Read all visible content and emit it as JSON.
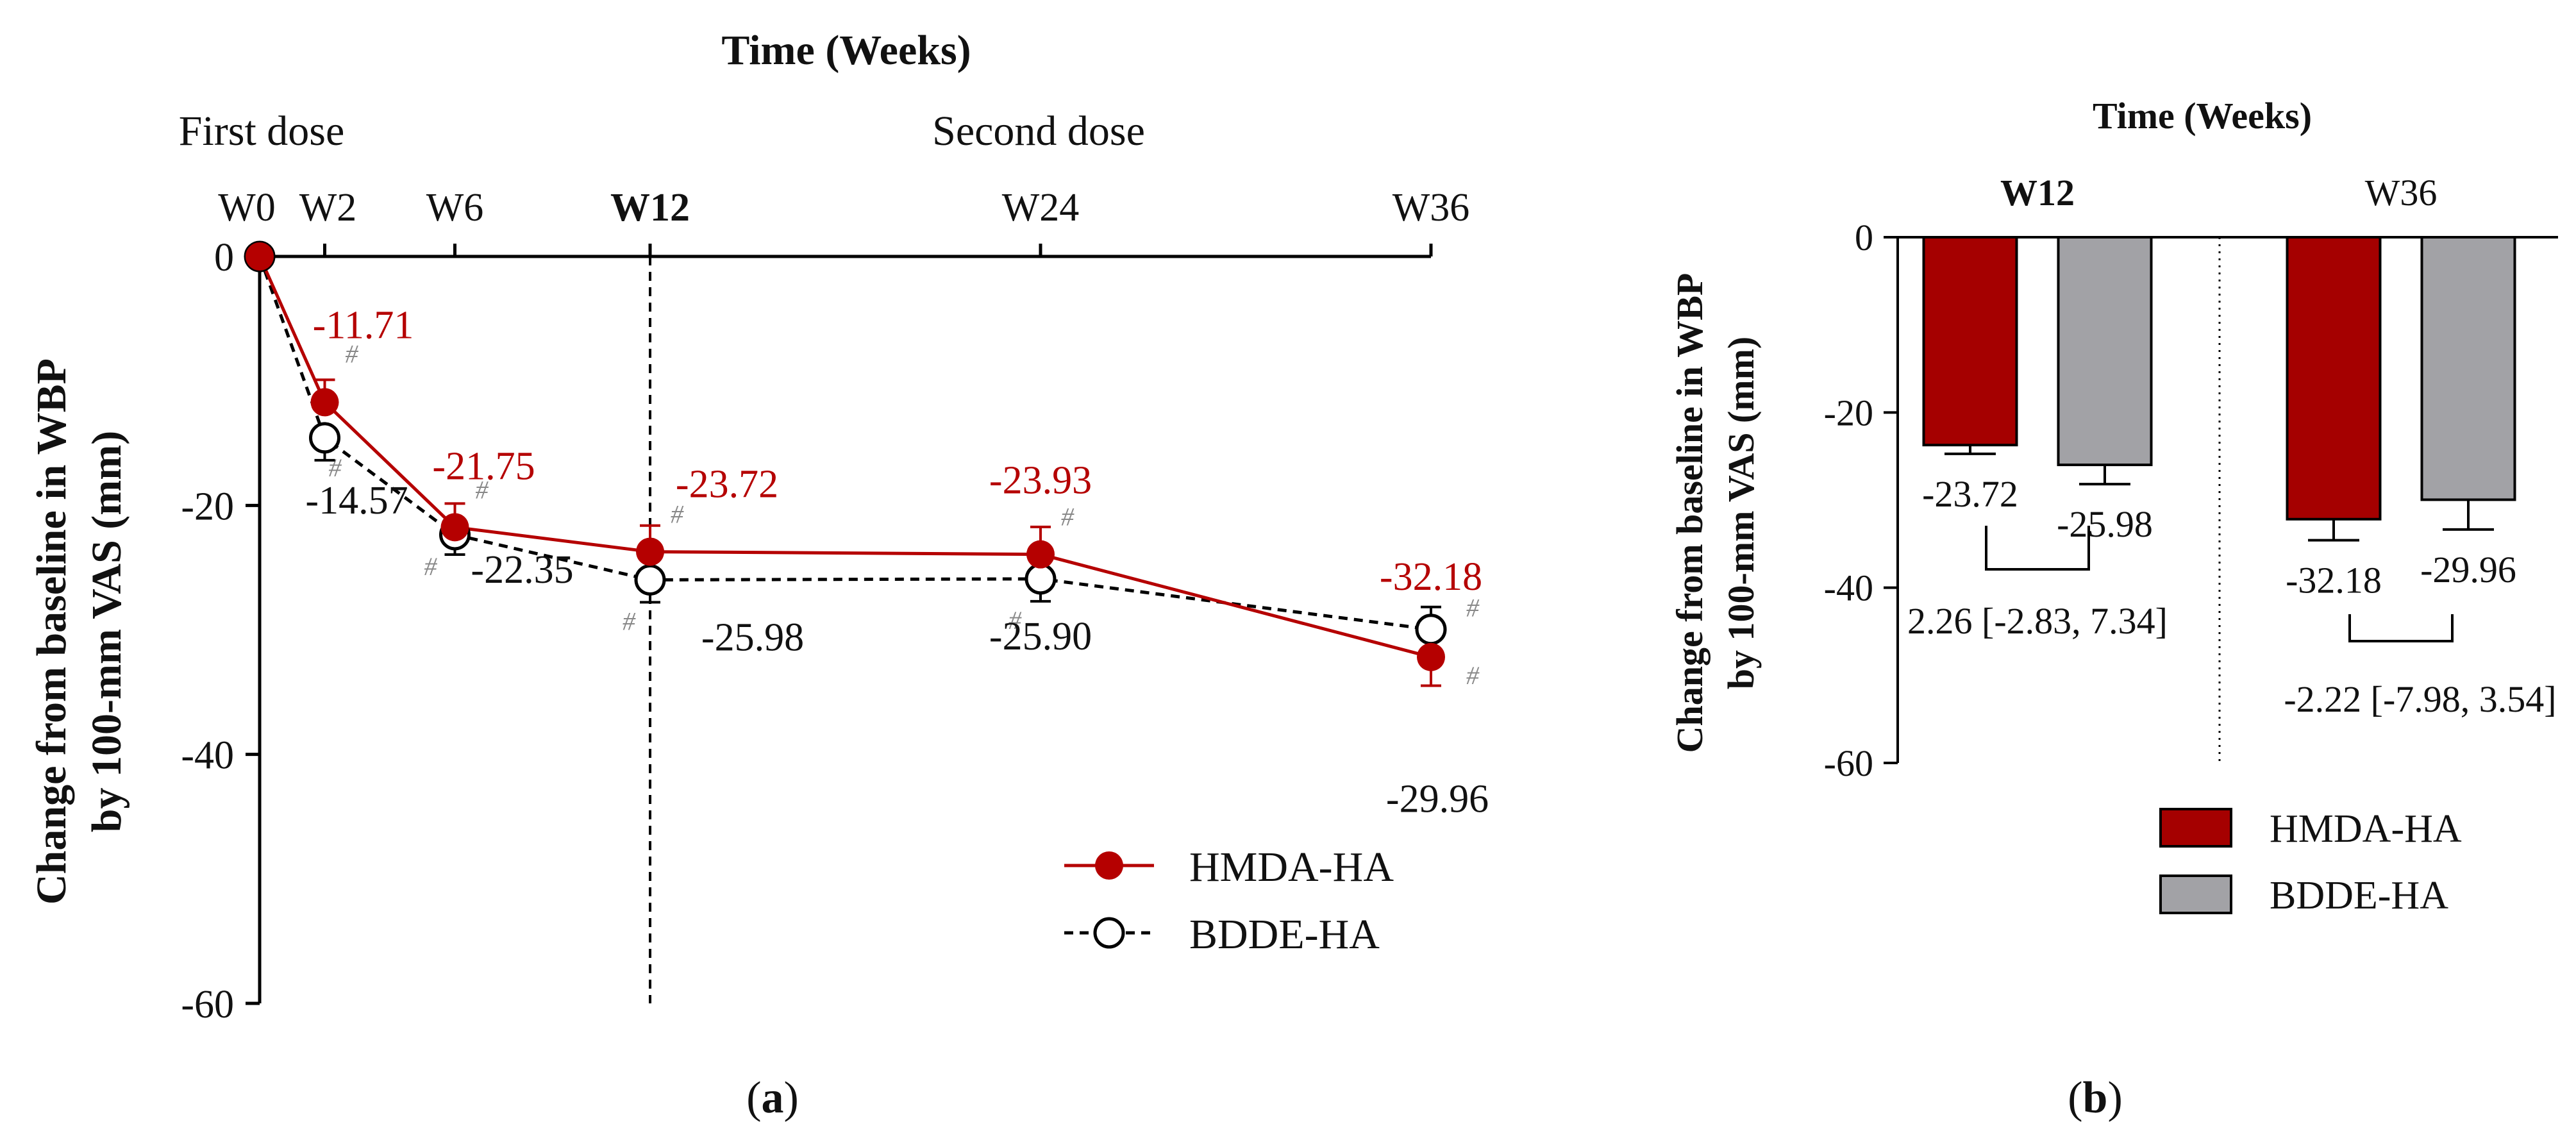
{
  "chart_data": [
    {
      "panel_label": "(a)",
      "type": "line",
      "title": "Time (Weeks)",
      "ylabel_line1": "Change from baseline in WBP",
      "ylabel_line2": "by 100-mm VAS (mm)",
      "ylim": [
        -60,
        0
      ],
      "yticks": [
        0,
        -20,
        -40,
        -60
      ],
      "ytick_labels": [
        "0",
        "-20",
        "-40",
        "-60"
      ],
      "x_weeks": [
        0,
        2,
        6,
        12,
        24,
        36
      ],
      "x_labels": [
        "W0",
        "W2",
        "W6",
        "W12",
        "W24",
        "W36"
      ],
      "bold_x_label": "W12",
      "dose_labels": {
        "first": "First dose",
        "second": "Second dose"
      },
      "reference_line_week": 12,
      "significance_marker": "#",
      "series": [
        {
          "name": "HMDA-HA",
          "color": "#b50000",
          "values": [
            0,
            -11.71,
            -21.75,
            -23.72,
            -23.93,
            -32.18
          ],
          "errors": [
            0,
            1.8,
            1.9,
            2.1,
            2.2,
            2.3
          ],
          "value_labels": [
            "",
            "-11.71",
            "-21.75",
            "-23.72",
            "-23.93",
            "-32.18"
          ]
        },
        {
          "name": "BDDE-HA",
          "color": "#000000",
          "values": [
            0,
            -14.57,
            -22.35,
            -25.98,
            -25.9,
            -29.96
          ],
          "errors": [
            0,
            1.8,
            1.6,
            1.8,
            1.8,
            1.8
          ],
          "value_labels": [
            "",
            "-14.57",
            "-22.35",
            "-25.98",
            "-25.90",
            "-29.96"
          ]
        }
      ]
    },
    {
      "panel_label": "(b)",
      "type": "bar",
      "title": "Time (Weeks)",
      "ylabel_line1": "Change from baseline in WBP",
      "ylabel_line2": "by 100-mm VAS (mm)",
      "ylim": [
        -60,
        0
      ],
      "yticks": [
        0,
        -20,
        -40,
        -60
      ],
      "ytick_labels": [
        "0",
        "-20",
        "-40",
        "-60"
      ],
      "categories": [
        "W12",
        "W36"
      ],
      "bold_category": "W12",
      "series": [
        {
          "name": "HMDA-HA",
          "color": "#a50000",
          "values": [
            -23.72,
            -32.18
          ],
          "errors": [
            1.0,
            2.4
          ],
          "value_labels": [
            "-23.72",
            "-32.18"
          ]
        },
        {
          "name": "BDDE-HA",
          "color": "#a2a2a6",
          "values": [
            -25.98,
            -29.96
          ],
          "errors": [
            2.2,
            3.4
          ],
          "value_labels": [
            "-25.98",
            "-29.96"
          ]
        }
      ],
      "differences": [
        "2.26 [-2.83, 7.34]",
        "-2.22 [-7.98, 3.54]"
      ]
    }
  ]
}
